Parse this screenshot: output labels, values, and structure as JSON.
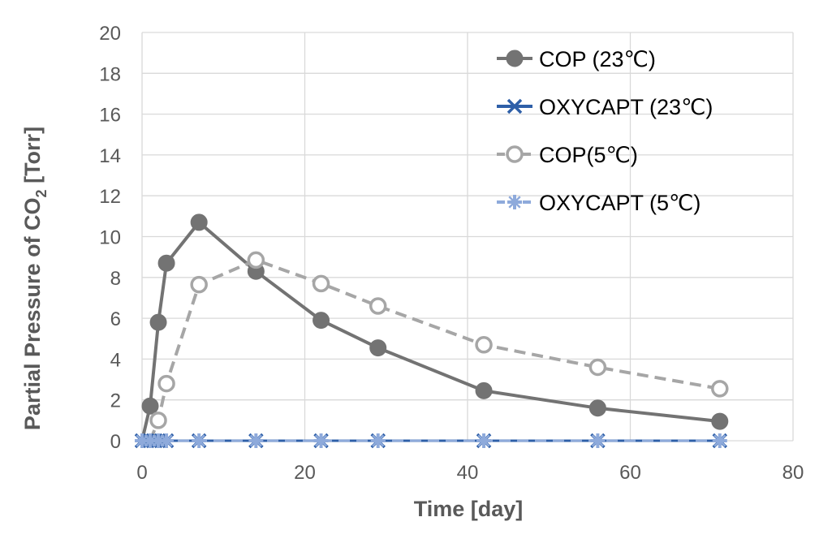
{
  "chart_data": {
    "type": "line",
    "title": "",
    "xlabel": "Time [day]",
    "ylabel_main": "Partial Pressure of CO",
    "ylabel_sub": "2",
    "ylabel_tail": " [Torr]",
    "xlim": [
      0,
      80
    ],
    "ylim": [
      0,
      20
    ],
    "x_ticks": [
      "0",
      "20",
      "40",
      "60",
      "80"
    ],
    "y_ticks": [
      "0",
      "2",
      "4",
      "6",
      "8",
      "10",
      "12",
      "14",
      "16",
      "18",
      "20"
    ],
    "grid": "horizontal and vertical gridlines",
    "legend_position": "top-right",
    "series": [
      {
        "name": "COP (23℃)",
        "color": "#737373",
        "line": "solid",
        "marker": "filled-circle",
        "x": [
          0,
          1,
          2,
          3,
          7,
          14,
          22,
          29,
          42,
          56,
          71
        ],
        "y": [
          0,
          1.7,
          5.8,
          8.7,
          10.7,
          8.3,
          5.9,
          4.55,
          2.45,
          1.6,
          0.95
        ]
      },
      {
        "name": "OXYCAPT (23℃)",
        "color": "#2e5fa8",
        "line": "solid",
        "marker": "x",
        "x": [
          0,
          1,
          2,
          3,
          7,
          14,
          22,
          29,
          42,
          56,
          71
        ],
        "y": [
          0,
          0,
          0,
          0,
          0,
          0,
          0,
          0,
          0,
          0,
          0
        ]
      },
      {
        "name": "COP(5℃)",
        "color": "#a6a6a6",
        "line": "dashed",
        "marker": "open-circle",
        "x": [
          1,
          2,
          3,
          7,
          14,
          22,
          29,
          42,
          56,
          71
        ],
        "y": [
          0,
          1.0,
          2.8,
          7.65,
          8.85,
          7.7,
          6.6,
          4.7,
          3.6,
          2.55
        ]
      },
      {
        "name": "OXYCAPT (5℃)",
        "color": "#8eaadb",
        "line": "dashed",
        "marker": "plus-star",
        "x": [
          0,
          1,
          2,
          3,
          7,
          14,
          22,
          29,
          42,
          56,
          71
        ],
        "y": [
          0,
          0,
          0,
          0,
          0,
          0,
          0,
          0,
          0,
          0,
          0
        ]
      }
    ]
  }
}
